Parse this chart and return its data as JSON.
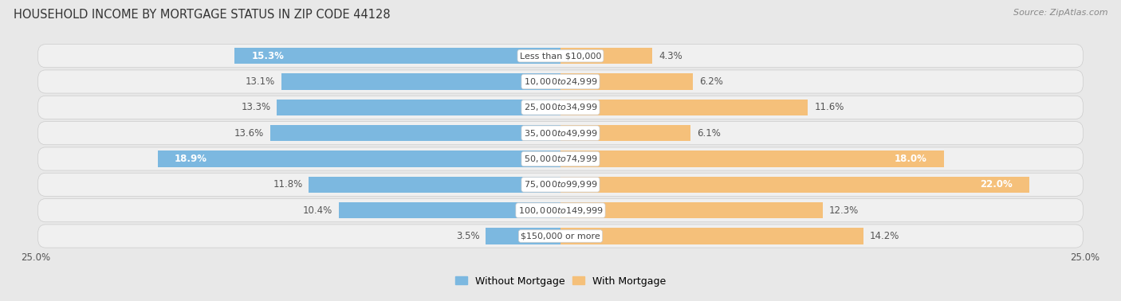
{
  "title": "HOUSEHOLD INCOME BY MORTGAGE STATUS IN ZIP CODE 44128",
  "source": "Source: ZipAtlas.com",
  "categories": [
    "Less than $10,000",
    "$10,000 to $24,999",
    "$25,000 to $34,999",
    "$35,000 to $49,999",
    "$50,000 to $74,999",
    "$75,000 to $99,999",
    "$100,000 to $149,999",
    "$150,000 or more"
  ],
  "without_mortgage": [
    15.3,
    13.1,
    13.3,
    13.6,
    18.9,
    11.8,
    10.4,
    3.5
  ],
  "with_mortgage": [
    4.3,
    6.2,
    11.6,
    6.1,
    18.0,
    22.0,
    12.3,
    14.2
  ],
  "color_without": "#7cb8e0",
  "color_with": "#f5c07a",
  "color_without_dark": "#5a9ec8",
  "color_with_dark": "#e8a050",
  "axis_label_left": "25.0%",
  "axis_label_right": "25.0%",
  "xlim": 25.0,
  "bg_color": "#e8e8e8",
  "row_bg_light": "#f0f0f0",
  "row_bg_dark": "#e0e0e0",
  "title_fontsize": 10.5,
  "bar_label_fontsize": 8.5,
  "cat_label_fontsize": 8.0,
  "legend_fontsize": 9,
  "source_fontsize": 8
}
